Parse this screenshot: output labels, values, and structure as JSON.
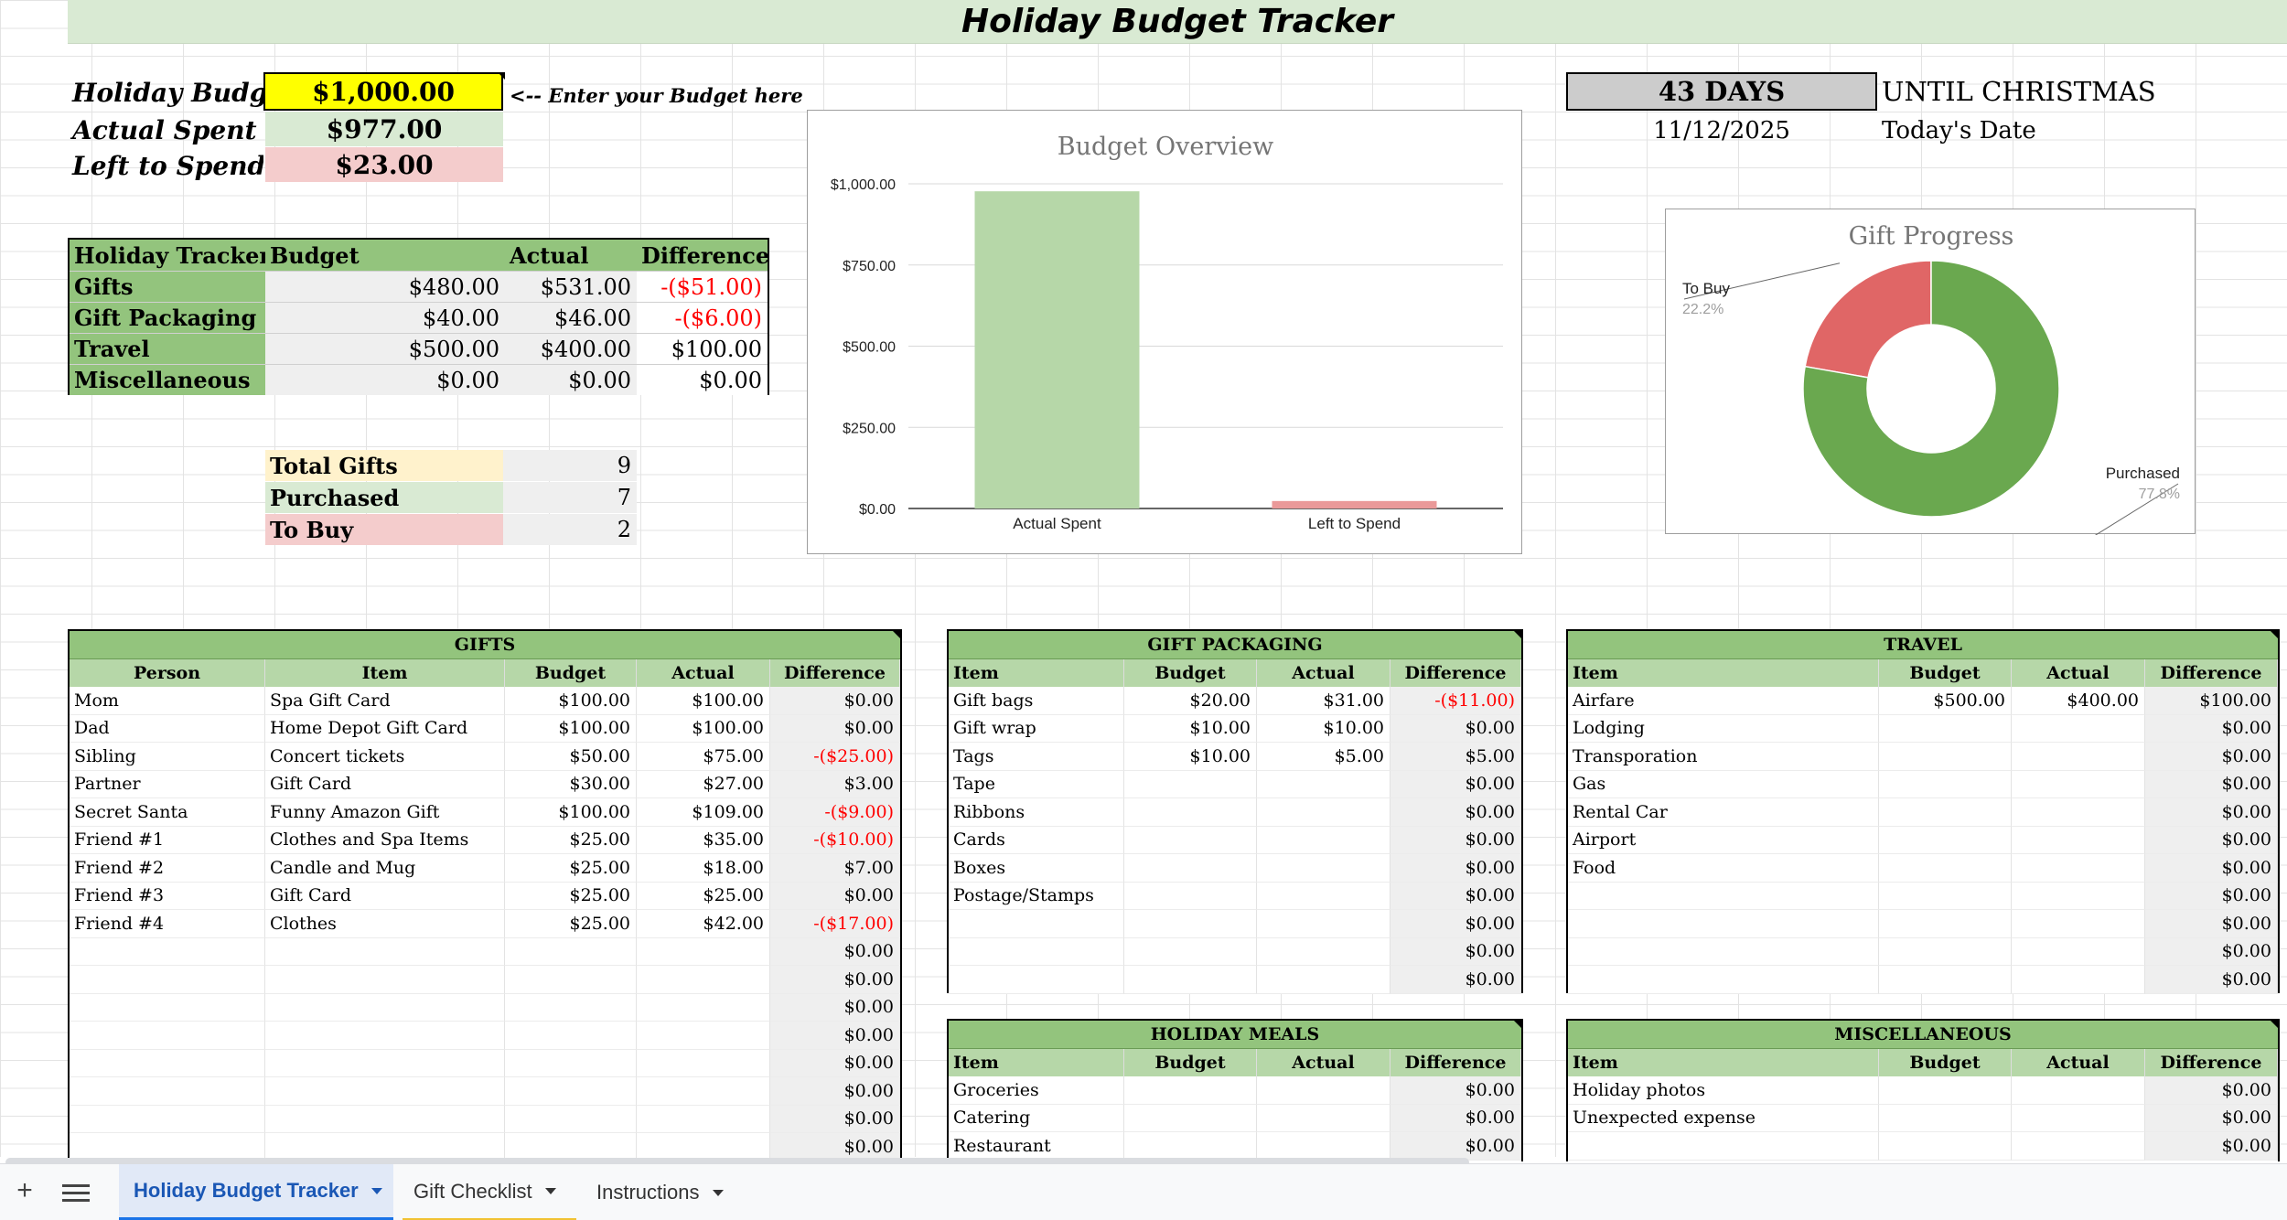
{
  "title": "Holiday Budget Tracker",
  "summary": {
    "budget_label": "Holiday Budget",
    "budget_value": "$1,000.00",
    "budget_hint": "<-- Enter your Budget here",
    "spent_label": "Actual Spent",
    "spent_value": "$977.00",
    "left_label": "Left to Spend",
    "left_value": "$23.00"
  },
  "countdown": {
    "days": "43 DAYS",
    "until": "UNTIL CHRISTMAS",
    "date": "11/12/2025",
    "date_label": "Today's Date"
  },
  "tracker": {
    "headers": [
      "Holiday Tracker",
      "Budget",
      "Actual",
      "Difference"
    ],
    "rows": [
      {
        "name": "Gifts",
        "budget": "$480.00",
        "actual": "$531.00",
        "diff": "-($51.00)",
        "neg": true
      },
      {
        "name": "Gift Packaging",
        "budget": "$40.00",
        "actual": "$46.00",
        "diff": "-($6.00)",
        "neg": true
      },
      {
        "name": "Travel",
        "budget": "$500.00",
        "actual": "$400.00",
        "diff": "$100.00",
        "neg": false
      },
      {
        "name": "Miscellaneous",
        "budget": "$0.00",
        "actual": "$0.00",
        "diff": "$0.00",
        "neg": false
      }
    ]
  },
  "gift_counts": {
    "total_label": "Total Gifts",
    "total": "9",
    "purchased_label": "Purchased",
    "purchased": "7",
    "tobuy_label": "To Buy",
    "tobuy": "2"
  },
  "gifts": {
    "title": "GIFTS",
    "headers": [
      "Person",
      "Item",
      "Budget",
      "Actual",
      "Difference"
    ],
    "rows": [
      [
        "Mom",
        "Spa Gift Card",
        "$100.00",
        "$100.00",
        "$0.00"
      ],
      [
        "Dad",
        "Home Depot Gift Card",
        "$100.00",
        "$100.00",
        "$0.00"
      ],
      [
        "Sibling",
        "Concert tickets",
        "$50.00",
        "$75.00",
        "-($25.00)"
      ],
      [
        "Partner",
        "Gift Card",
        "$30.00",
        "$27.00",
        "$3.00"
      ],
      [
        "Secret Santa",
        "Funny Amazon Gift",
        "$100.00",
        "$109.00",
        "-($9.00)"
      ],
      [
        "Friend #1",
        "Clothes and Spa Items",
        "$25.00",
        "$35.00",
        "-($10.00)"
      ],
      [
        "Friend #2",
        "Candle and Mug",
        "$25.00",
        "$18.00",
        "$7.00"
      ],
      [
        "Friend #3",
        "Gift Card",
        "$25.00",
        "$25.00",
        "$0.00"
      ],
      [
        "Friend #4",
        "Clothes",
        "$25.00",
        "$42.00",
        "-($17.00)"
      ],
      [
        "",
        "",
        "",
        "",
        "$0.00"
      ],
      [
        "",
        "",
        "",
        "",
        "$0.00"
      ],
      [
        "",
        "",
        "",
        "",
        "$0.00"
      ],
      [
        "",
        "",
        "",
        "",
        "$0.00"
      ],
      [
        "",
        "",
        "",
        "",
        "$0.00"
      ],
      [
        "",
        "",
        "",
        "",
        "$0.00"
      ],
      [
        "",
        "",
        "",
        "",
        "$0.00"
      ],
      [
        "",
        "",
        "",
        "",
        "$0.00"
      ]
    ]
  },
  "packaging": {
    "title": "GIFT PACKAGING",
    "headers": [
      "Item",
      "Budget",
      "Actual",
      "Difference"
    ],
    "rows": [
      [
        "Gift bags",
        "$20.00",
        "$31.00",
        "-($11.00)"
      ],
      [
        "Gift wrap",
        "$10.00",
        "$10.00",
        "$0.00"
      ],
      [
        "Tags",
        "$10.00",
        "$5.00",
        "$5.00"
      ],
      [
        "Tape",
        "",
        "",
        "$0.00"
      ],
      [
        "Ribbons",
        "",
        "",
        "$0.00"
      ],
      [
        "Cards",
        "",
        "",
        "$0.00"
      ],
      [
        "Boxes",
        "",
        "",
        "$0.00"
      ],
      [
        "Postage/Stamps",
        "",
        "",
        "$0.00"
      ],
      [
        "",
        "",
        "",
        "$0.00"
      ],
      [
        "",
        "",
        "",
        "$0.00"
      ],
      [
        "",
        "",
        "",
        "$0.00"
      ]
    ]
  },
  "travel": {
    "title": "TRAVEL",
    "headers": [
      "Item",
      "Budget",
      "Actual",
      "Difference"
    ],
    "rows": [
      [
        "Airfare",
        "$500.00",
        "$400.00",
        "$100.00"
      ],
      [
        "Lodging",
        "",
        "",
        "$0.00"
      ],
      [
        "Transporation",
        "",
        "",
        "$0.00"
      ],
      [
        "Gas",
        "",
        "",
        "$0.00"
      ],
      [
        "Rental Car",
        "",
        "",
        "$0.00"
      ],
      [
        "Airport",
        "",
        "",
        "$0.00"
      ],
      [
        "Food",
        "",
        "",
        "$0.00"
      ],
      [
        "",
        "",
        "",
        "$0.00"
      ],
      [
        "",
        "",
        "",
        "$0.00"
      ],
      [
        "",
        "",
        "",
        "$0.00"
      ],
      [
        "",
        "",
        "",
        "$0.00"
      ]
    ]
  },
  "meals": {
    "title": "HOLIDAY MEALS",
    "headers": [
      "Item",
      "Budget",
      "Actual",
      "Difference"
    ],
    "rows": [
      [
        "Groceries",
        "",
        "",
        "$0.00"
      ],
      [
        "Catering",
        "",
        "",
        "$0.00"
      ],
      [
        "Restaurant",
        "",
        "",
        "$0.00"
      ]
    ]
  },
  "misc": {
    "title": "MISCELLANEOUS",
    "headers": [
      "Item",
      "Budget",
      "Actual",
      "Difference"
    ],
    "rows": [
      [
        "Holiday photos",
        "",
        "",
        "$0.00"
      ],
      [
        "Unexpected expense",
        "",
        "",
        "$0.00"
      ],
      [
        "",
        "",
        "",
        "$0.00"
      ]
    ]
  },
  "colors": {
    "header_green": "#93c47d",
    "light_green": "#d9ead3",
    "yellow": "#ffff00",
    "light_red": "#f4cccc",
    "light_yellow": "#fff2cc",
    "gray_cell": "#efefef",
    "bar_green": "#b6d7a8",
    "bar_red": "#ea9999",
    "donut_green": "#6aa84f",
    "donut_red": "#e06666"
  },
  "chart_data": [
    {
      "type": "bar",
      "title": "Budget Overview",
      "categories": [
        "Actual Spent",
        "Left to Spend"
      ],
      "values": [
        977,
        23
      ],
      "ylim": [
        0,
        1000
      ],
      "yticks": [
        "$0.00",
        "$250.00",
        "$500.00",
        "$750.00",
        "$1,000.00"
      ],
      "ytick_values": [
        0,
        250,
        500,
        750,
        1000
      ],
      "grid": true
    },
    {
      "type": "pie",
      "title": "Gift Progress",
      "labels": [
        "To Buy",
        "Purchased"
      ],
      "values": [
        2,
        7
      ],
      "percent_labels": [
        "22.2%",
        "77.8%"
      ],
      "donut": true
    }
  ],
  "tabs": [
    {
      "label": "Holiday Budget Tracker",
      "active": true
    },
    {
      "label": "Gift Checklist",
      "active": false
    },
    {
      "label": "Instructions",
      "active": false
    }
  ]
}
